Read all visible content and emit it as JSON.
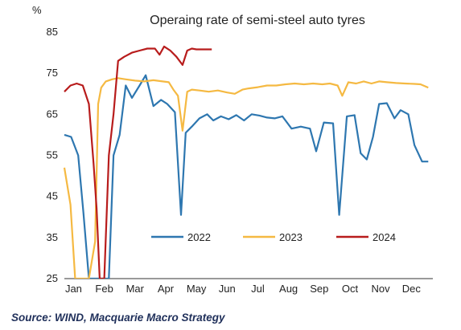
{
  "chart_data": {
    "type": "line",
    "title": "Operaing rate of semi-steel auto tyres",
    "ylabel": "%",
    "xlabel": "",
    "ylim": [
      25,
      85
    ],
    "xlim": [
      0,
      12
    ],
    "yticks": [
      25,
      35,
      45,
      55,
      65,
      75,
      85
    ],
    "month_labels": [
      "Jan",
      "Feb",
      "Mar",
      "Apr",
      "May",
      "Jun",
      "Jul",
      "Aug",
      "Sep",
      "Oct",
      "Nov",
      "Dec"
    ],
    "legend_position": "bottom-center inside plot",
    "grid": false,
    "series": [
      {
        "name": "2022",
        "color": "#2e77b0",
        "x": [
          0.0,
          0.22,
          0.45,
          0.62,
          0.8,
          1.05,
          1.25,
          1.45,
          1.6,
          1.8,
          2.0,
          2.2,
          2.45,
          2.65,
          2.9,
          3.15,
          3.35,
          3.6,
          3.8,
          3.95,
          4.15,
          4.4,
          4.65,
          4.85,
          5.1,
          5.35,
          5.6,
          5.85,
          6.1,
          6.35,
          6.6,
          6.85,
          7.1,
          7.4,
          7.7,
          8.0,
          8.2,
          8.45,
          8.75,
          8.95,
          9.2,
          9.45,
          9.65,
          9.85,
          10.05,
          10.25,
          10.5,
          10.75,
          10.95,
          11.2,
          11.4,
          11.65,
          11.85
        ],
        "values": [
          60,
          59.5,
          55,
          41,
          25,
          25,
          25,
          25,
          55,
          60,
          72,
          69,
          72,
          74.5,
          67,
          68.5,
          67.5,
          65.5,
          40.5,
          60.5,
          62,
          64,
          65,
          63.5,
          64.5,
          63.8,
          64.8,
          63.5,
          65,
          64.7,
          64.2,
          64,
          64.5,
          61.5,
          62,
          61.5,
          56,
          63,
          62.8,
          40.5,
          64.5,
          64.8,
          55.5,
          54,
          59.5,
          67.5,
          67.7,
          64,
          66,
          65,
          57.5,
          53.5,
          53.5
        ]
      },
      {
        "name": "2023",
        "color": "#f5b942",
        "x": [
          0.0,
          0.2,
          0.35,
          0.5,
          0.65,
          0.8,
          1.0,
          1.1,
          1.2,
          1.35,
          1.55,
          1.75,
          2.0,
          2.3,
          2.6,
          2.9,
          3.2,
          3.4,
          3.55,
          3.7,
          3.85,
          4.0,
          4.15,
          4.4,
          4.7,
          5.0,
          5.3,
          5.55,
          5.8,
          6.0,
          6.3,
          6.6,
          6.9,
          7.2,
          7.5,
          7.8,
          8.1,
          8.4,
          8.65,
          8.9,
          9.05,
          9.25,
          9.5,
          9.75,
          10.0,
          10.25,
          10.5,
          10.8,
          11.1,
          11.4,
          11.6,
          11.85
        ],
        "values": [
          52,
          43,
          25,
          25,
          25,
          25,
          34,
          67.5,
          71.5,
          73,
          73.5,
          73.8,
          73.5,
          73.2,
          73,
          73.3,
          73,
          72.8,
          71,
          69.5,
          61,
          70.5,
          71,
          70.8,
          70.5,
          70.8,
          70.3,
          70,
          71,
          71.3,
          71.6,
          72,
          72,
          72.3,
          72.5,
          72.3,
          72.5,
          72.3,
          72.5,
          72,
          69.5,
          72.8,
          72.5,
          73,
          72.5,
          73,
          72.8,
          72.6,
          72.5,
          72.4,
          72.3,
          71.5
        ]
      },
      {
        "name": "2024",
        "color": "#b81c1c",
        "x": [
          0.0,
          0.2,
          0.4,
          0.6,
          0.8,
          0.95,
          1.05,
          1.15,
          1.3,
          1.45,
          1.6,
          1.75,
          1.95,
          2.2,
          2.45,
          2.7,
          2.95,
          3.1,
          3.25,
          3.45,
          3.65,
          3.85,
          4.0,
          4.15,
          4.3,
          4.55,
          4.8
        ],
        "values": [
          70.5,
          72,
          72.5,
          72,
          67.5,
          53,
          42,
          25,
          25,
          55,
          65,
          78,
          79,
          80,
          80.5,
          81,
          81,
          79.5,
          81.5,
          80.5,
          79,
          77,
          80.5,
          81,
          80.8,
          80.8,
          80.8
        ]
      }
    ]
  },
  "source": "Source: WIND, Macquarie Macro Strategy"
}
